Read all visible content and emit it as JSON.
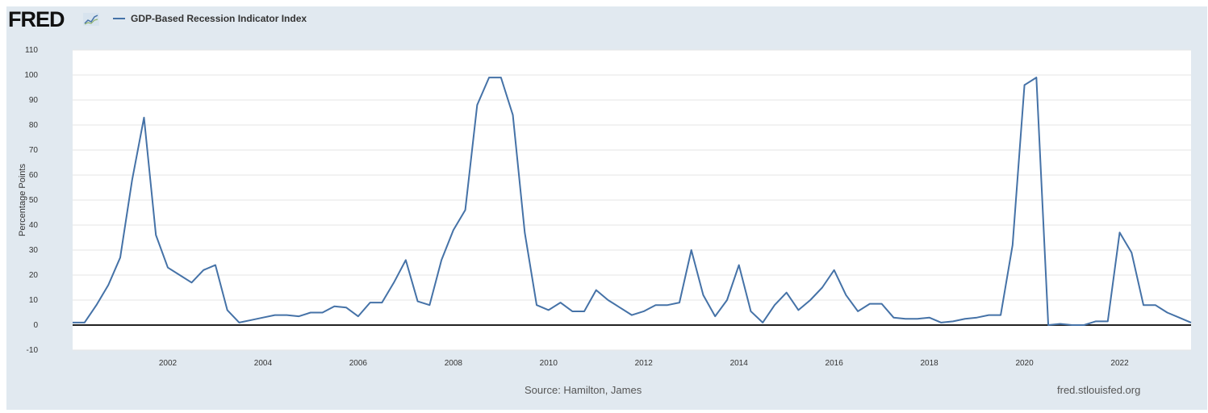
{
  "header": {
    "logo_text": "FRED",
    "logo_icon": "line-chart-icon"
  },
  "footer": {
    "source": "Source: Hamilton, James",
    "credit": "fred.stlouisfed.org"
  },
  "colors": {
    "series": "#4572a7",
    "background": "#e1e9f0",
    "plot": "#ffffff",
    "grid": "#e6e6e6",
    "zero_line": "#222222"
  },
  "chart_data": {
    "type": "line",
    "ylabel": "Percentage Points",
    "ylim": [
      -10,
      110
    ],
    "yticks": [
      "-10",
      "0",
      "10",
      "20",
      "30",
      "40",
      "50",
      "60",
      "70",
      "80",
      "90",
      "100",
      "110"
    ],
    "xlim": [
      "2000-01",
      "2023-07"
    ],
    "xticks": [
      "2002",
      "2004",
      "2006",
      "2008",
      "2010",
      "2012",
      "2014",
      "2016",
      "2018",
      "2020",
      "2022"
    ],
    "grid": true,
    "legend_position": "top-left",
    "series": [
      {
        "name": "GDP-Based Recession Indicator Index",
        "x": [
          "2000-01",
          "2000-04",
          "2000-07",
          "2000-10",
          "2001-01",
          "2001-04",
          "2001-07",
          "2001-10",
          "2002-01",
          "2002-04",
          "2002-07",
          "2002-10",
          "2003-01",
          "2003-04",
          "2003-07",
          "2003-10",
          "2004-01",
          "2004-04",
          "2004-07",
          "2004-10",
          "2005-01",
          "2005-04",
          "2005-07",
          "2005-10",
          "2006-01",
          "2006-04",
          "2006-07",
          "2006-10",
          "2007-01",
          "2007-04",
          "2007-07",
          "2007-10",
          "2008-01",
          "2008-04",
          "2008-07",
          "2008-10",
          "2009-01",
          "2009-04",
          "2009-07",
          "2009-10",
          "2010-01",
          "2010-04",
          "2010-07",
          "2010-10",
          "2011-01",
          "2011-04",
          "2011-07",
          "2011-10",
          "2012-01",
          "2012-04",
          "2012-07",
          "2012-10",
          "2013-01",
          "2013-04",
          "2013-07",
          "2013-10",
          "2014-01",
          "2014-04",
          "2014-07",
          "2014-10",
          "2015-01",
          "2015-04",
          "2015-07",
          "2015-10",
          "2016-01",
          "2016-04",
          "2016-07",
          "2016-10",
          "2017-01",
          "2017-04",
          "2017-07",
          "2017-10",
          "2018-01",
          "2018-04",
          "2018-07",
          "2018-10",
          "2019-01",
          "2019-04",
          "2019-07",
          "2019-10",
          "2020-01",
          "2020-04",
          "2020-07",
          "2020-10",
          "2021-01",
          "2021-04",
          "2021-07",
          "2021-10",
          "2022-01",
          "2022-04",
          "2022-07",
          "2022-10",
          "2023-01",
          "2023-04",
          "2023-07"
        ],
        "values": [
          1,
          1,
          8,
          16,
          27,
          58,
          83,
          36,
          23,
          20,
          17,
          22,
          24,
          6,
          1,
          2,
          3,
          4,
          4,
          3.5,
          5,
          5,
          7.5,
          7,
          3.5,
          9,
          9,
          17,
          26,
          9.5,
          8,
          26,
          38,
          46,
          88,
          99,
          99,
          84,
          37,
          8,
          6,
          9,
          5.5,
          5.5,
          14,
          10,
          7,
          4,
          5.5,
          8,
          8,
          9,
          30,
          12,
          3.5,
          10,
          24,
          5.5,
          1,
          8,
          13,
          6,
          10,
          15,
          22,
          12,
          5.5,
          8.5,
          8.5,
          3,
          2.5,
          2.5,
          3,
          1,
          1.5,
          2.5,
          3,
          4,
          4,
          32,
          96,
          99,
          0,
          0.5,
          0,
          0,
          1.5,
          1.5,
          37,
          29,
          8,
          8,
          5,
          3,
          1
        ]
      }
    ]
  }
}
